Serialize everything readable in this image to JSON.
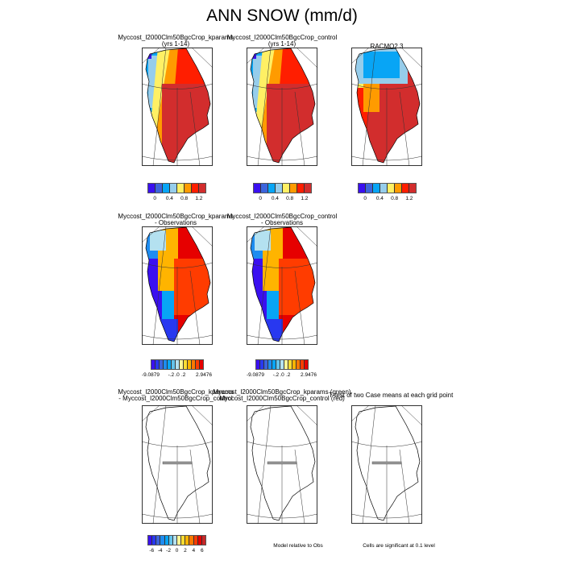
{
  "title": "ANN SNOW (mm/d)",
  "palette": {
    "abs": [
      "#3a10f0",
      "#3c64dc",
      "#08a5f5",
      "#96cdeb",
      "#fff064",
      "#ff9b00",
      "#ff1e00",
      "#d22d2d"
    ],
    "diff": [
      "#3a10f0",
      "#2838f0",
      "#3c64dc",
      "#1e8cf0",
      "#08a5f5",
      "#64c3eb",
      "#b4e1f0",
      "#fff596",
      "#ffdc32",
      "#ffb400",
      "#ff7800",
      "#ff3c00",
      "#e60000",
      "#c82828"
    ]
  },
  "rows": [
    {
      "panels": [
        {
          "title": [
            "Myccost_I2000Clm50BgcCrop_kparams",
            "(yrs 1-14)"
          ],
          "kind": "model"
        },
        {
          "title": [
            "Myccost_I2000Clm50BgcCrop_control",
            "(yrs 1-14)"
          ],
          "kind": "model"
        },
        {
          "title": [
            "RACMO2.3"
          ],
          "kind": "obs"
        }
      ]
    },
    {
      "panels": [
        {
          "title": [
            "Myccost_I2000Clm50BgcCrop_kparams",
            "- Observations"
          ],
          "kind": "bias"
        },
        {
          "title": [
            "Myccost_I2000Clm50BgcCrop_control",
            "- Observations"
          ],
          "kind": "bias"
        }
      ]
    },
    {
      "panels": [
        {
          "title": [
            "Myccost_I2000Clm50BgcCrop_kparams",
            "- Myccost_I2000Clm50BgcCrop_control"
          ],
          "kind": "blank"
        },
        {
          "title": [
            "Myccost_I2000Clm50BgcCrop_kparams (green)",
            "Myccost_I2000Clm50BgcCrop_control (red)"
          ],
          "kind": "blank"
        },
        {
          "title": [
            "T-test of two Case means at each grid point"
          ],
          "kind": "blank"
        }
      ]
    }
  ],
  "notes": {
    "model_relative": "Model relative to Obs",
    "significance": "Cells are significant at 0.1 level"
  },
  "chart_data": [
    {
      "type": "heatmap",
      "title": "Myccost_I2000Clm50BgcCrop_kparams (yrs 1-14)",
      "colorbar": {
        "levels": 8,
        "labels": [
          "0",
          "0.4",
          "0.8",
          "1.2"
        ]
      }
    },
    {
      "type": "heatmap",
      "title": "Myccost_I2000Clm50BgcCrop_control (yrs 1-14)",
      "colorbar": {
        "levels": 8,
        "labels": [
          "0",
          "0.4",
          "0.8",
          "1.2"
        ]
      }
    },
    {
      "type": "heatmap",
      "title": "RACMO2.3",
      "colorbar": {
        "levels": 8,
        "labels": [
          "0",
          "0.4",
          "0.8",
          "1.2"
        ]
      }
    },
    {
      "type": "heatmap",
      "title": "Myccost_I2000Clm50BgcCrop_kparams - Observations",
      "colorbar": {
        "levels": 14,
        "labels": [
          "-9.0879",
          "-.2",
          ".0",
          ".2",
          "2.9476"
        ]
      }
    },
    {
      "type": "heatmap",
      "title": "Myccost_I2000Clm50BgcCrop_control - Observations",
      "colorbar": {
        "levels": 14,
        "labels": [
          "-9.0879",
          "-.2",
          ".0",
          ".2",
          "2.9476"
        ]
      }
    },
    {
      "type": "heatmap",
      "title": "Myccost_I2000Clm50BgcCrop_kparams - Myccost_I2000Clm50BgcCrop_control",
      "colorbar": {
        "levels": 14,
        "labels": [
          "-6",
          "-4",
          "-2",
          "0",
          "2",
          "4",
          "6"
        ]
      }
    }
  ]
}
